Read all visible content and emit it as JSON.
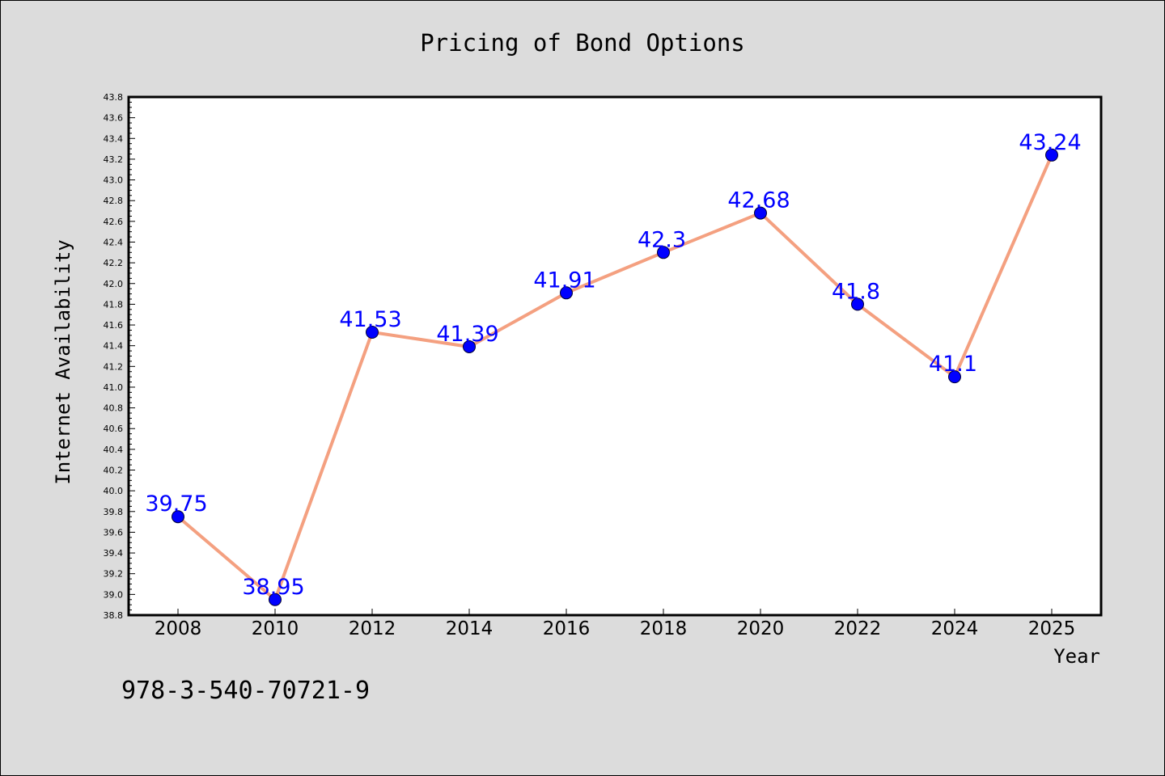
{
  "chart_data": {
    "type": "line",
    "title": "Pricing of Bond Options",
    "xlabel": "Year",
    "ylabel": "Internet Availability",
    "categories": [
      "2008",
      "2010",
      "2012",
      "2014",
      "2016",
      "2018",
      "2020",
      "2022",
      "2024",
      "2025"
    ],
    "series": [
      {
        "values": [
          39.75,
          38.95,
          41.53,
          41.39,
          41.91,
          42.3,
          42.68,
          41.8,
          41.1,
          43.24
        ]
      }
    ],
    "data_labels": [
      "39.75",
      "38.95",
      "41.53",
      "41.39",
      "41.91",
      "42.3",
      "42.68",
      "41.8",
      "41.1",
      "43.24"
    ],
    "ylim": [
      38.8,
      43.8
    ],
    "yticks": [
      "38.8",
      "39.0",
      "39.2",
      "39.4",
      "39.6",
      "39.8",
      "40.0",
      "40.2",
      "40.4",
      "40.6",
      "40.8",
      "41.0",
      "41.2",
      "41.4",
      "41.6",
      "41.8",
      "42.0",
      "42.2",
      "42.4",
      "42.6",
      "42.8",
      "43.0",
      "43.2",
      "43.4",
      "43.6",
      "43.8"
    ],
    "grid": false,
    "legend": "none",
    "colors": {
      "line": "#f4a080",
      "marker": "#0000ff",
      "labels": "#0000ff",
      "plot_bg": "#ffffff",
      "page_bg": "#dcdcdc"
    }
  },
  "footer_text": "978-3-540-70721-9"
}
